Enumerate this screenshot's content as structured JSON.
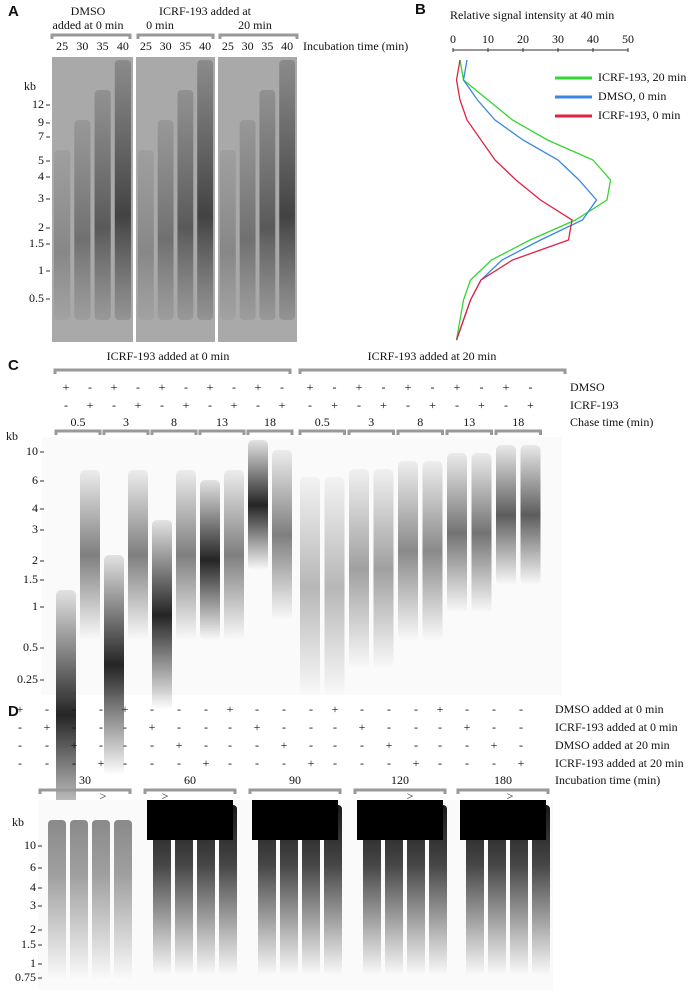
{
  "panel_a": {
    "label": "A",
    "headers": [
      "DMSO",
      "added at 0 min",
      "ICRF-193 added at",
      "0 min",
      "20 min"
    ],
    "lanes": [
      [
        "25",
        "30",
        "35",
        "40"
      ],
      [
        "25",
        "30",
        "35",
        "40"
      ],
      [
        "25",
        "30",
        "35",
        "40"
      ]
    ],
    "lane_axis": "Incubation time (min)",
    "kb": "kb",
    "markers": [
      "12",
      "9",
      "7",
      "5",
      "4",
      "3",
      "2",
      "1.5",
      "1",
      "0.5"
    ]
  },
  "panel_b": {
    "label": "B"
  },
  "chart_data": {
    "type": "line",
    "title": "Relative signal intensity at 40 min",
    "categories": [
      null,
      null,
      null,
      null,
      null,
      null,
      null,
      null,
      null,
      null,
      null,
      null,
      null,
      null,
      null
    ],
    "xlim": [
      0,
      50
    ],
    "xticks": [
      0,
      10,
      20,
      30,
      40,
      50
    ],
    "series": [
      {
        "name": "ICRF-193, 20 min",
        "color": "#33d633",
        "values": [
          2,
          3,
          10,
          17,
          27,
          40,
          45,
          44,
          35,
          22,
          11,
          5,
          3,
          2,
          1
        ]
      },
      {
        "name": "DMSO, 0 min",
        "color": "#3a86e0",
        "values": [
          4,
          3,
          7,
          12,
          20,
          30,
          36,
          41,
          37,
          25,
          14,
          8,
          5,
          3,
          1
        ]
      },
      {
        "name": "ICRF-193, 0 min",
        "color": "#e02244",
        "values": [
          2,
          1,
          2,
          4,
          8,
          12,
          18,
          25,
          34,
          33,
          17,
          8,
          5,
          3,
          1
        ]
      }
    ]
  },
  "panel_c": {
    "label": "C",
    "groups": [
      "ICRF-193 added at 0 min",
      "ICRF-193 added at 20 min"
    ],
    "rows": [
      {
        "label": "DMSO",
        "signs": [
          "+",
          "-",
          "+",
          "-",
          "+",
          "-",
          "+",
          "-",
          "+",
          "-",
          "+",
          "-",
          "+",
          "-",
          "+",
          "-",
          "+",
          "-",
          "+",
          "-"
        ]
      },
      {
        "label": "ICRF-193",
        "signs": [
          "-",
          "+",
          "-",
          "+",
          "-",
          "+",
          "-",
          "+",
          "-",
          "+",
          "-",
          "+",
          "-",
          "+",
          "-",
          "+",
          "-",
          "+",
          "-",
          "+"
        ]
      }
    ],
    "chase_label": "Chase time (min)",
    "chase": [
      [
        "0.5",
        "3",
        "8",
        "13",
        "18"
      ],
      [
        "0.5",
        "3",
        "8",
        "13",
        "18"
      ]
    ],
    "kb": "kb",
    "markers": [
      "10",
      "6",
      "4",
      "3",
      "2",
      "1.5",
      "1",
      "0.5",
      "0.25"
    ]
  },
  "panel_d": {
    "label": "D",
    "rows": [
      {
        "label": "DMSO added at 0 min",
        "signs": [
          "+",
          "-",
          "-",
          "-",
          "+",
          "-",
          "-",
          "-",
          "+",
          "-",
          "-",
          "-",
          "+",
          "-",
          "-",
          "-",
          "+",
          "-",
          "-",
          "-"
        ]
      },
      {
        "label": "ICRF-193 added at 0 min",
        "signs": [
          "-",
          "+",
          "-",
          "-",
          "-",
          "+",
          "-",
          "-",
          "-",
          "+",
          "-",
          "-",
          "-",
          "+",
          "-",
          "-",
          "-",
          "+",
          "-",
          "-"
        ]
      },
      {
        "label": "DMSO added at 20 min",
        "signs": [
          "-",
          "-",
          "+",
          "-",
          "-",
          "-",
          "+",
          "-",
          "-",
          "-",
          "+",
          "-",
          "-",
          "-",
          "+",
          "-",
          "-",
          "-",
          "+",
          "-"
        ]
      },
      {
        "label": "ICRF-193 added at 20 min",
        "signs": [
          "-",
          "-",
          "-",
          "+",
          "-",
          "-",
          "-",
          "+",
          "-",
          "-",
          "-",
          "+",
          "-",
          "-",
          "-",
          "+",
          "-",
          "-",
          "-",
          "+"
        ]
      }
    ],
    "times": [
      "30",
      "60",
      "90",
      "120",
      "180"
    ],
    "time_label": "Incubation time (min)",
    "arrows": [
      ">",
      ">",
      ">",
      ">"
    ],
    "kb": "kb",
    "markers": [
      "10",
      "6",
      "4",
      "3",
      "2",
      "1.5",
      "1",
      "0.75"
    ]
  }
}
